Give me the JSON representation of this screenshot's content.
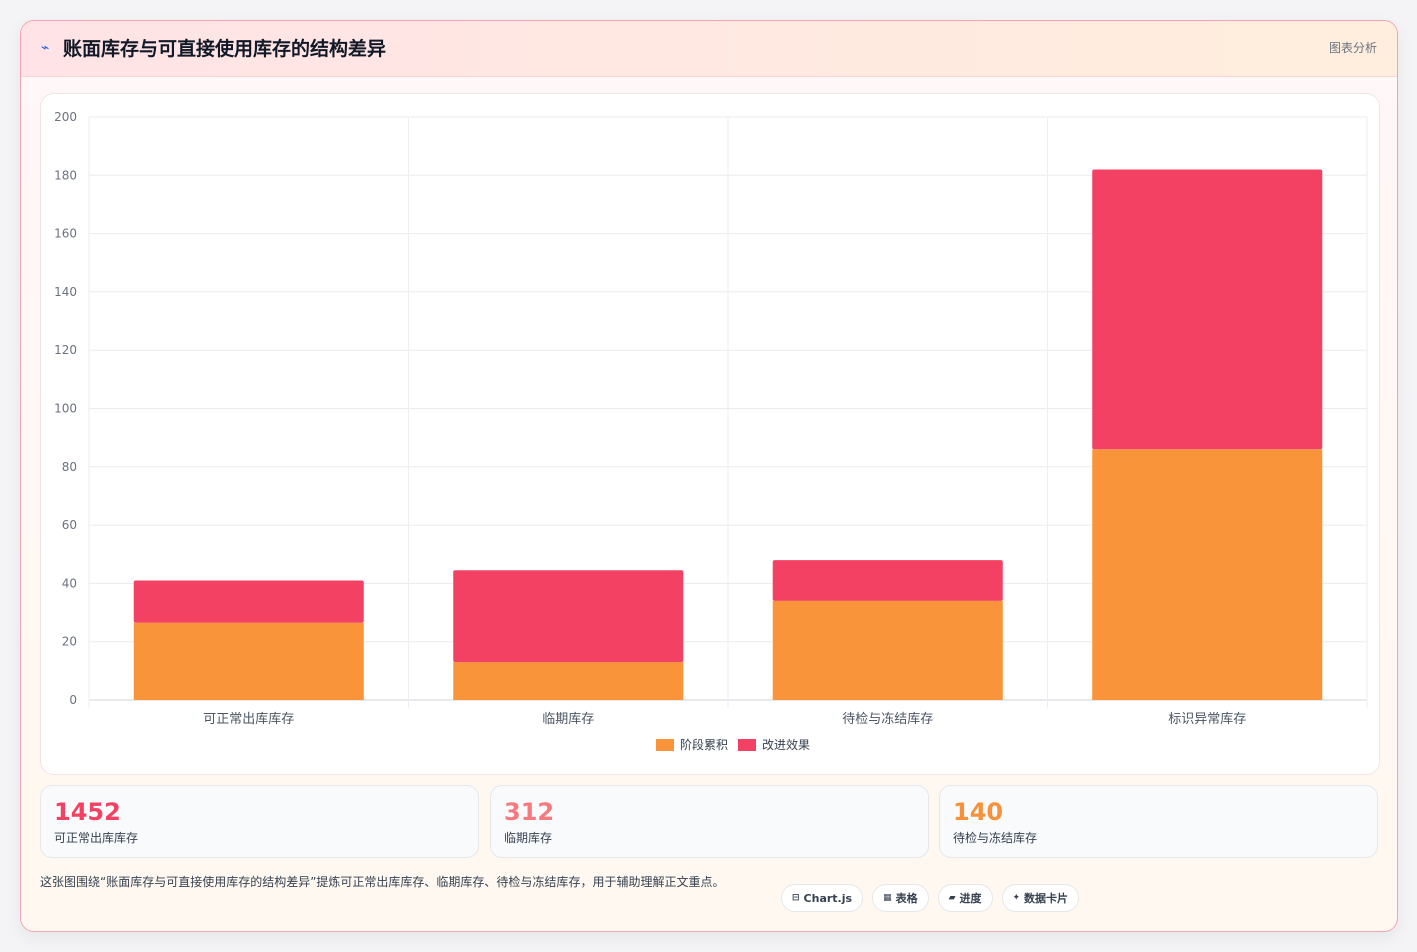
{
  "header": {
    "icon": "trend-icon",
    "title": "账面库存与可直接使用库存的结构差异",
    "right_label": "图表分析"
  },
  "colors": {
    "series_a": "#f9943b",
    "series_b": "#f24162",
    "kpi_1": "#f24162",
    "kpi_2": "#f47a7d",
    "kpi_3": "#f7913b"
  },
  "chart_data": {
    "type": "bar",
    "stacked": true,
    "categories": [
      "可正常出库库存",
      "临期库存",
      "待检与冻结库存",
      "标识异常库存"
    ],
    "series": [
      {
        "name": "阶段累积",
        "values": [
          26.5,
          13,
          34,
          86
        ]
      },
      {
        "name": "改进效果",
        "values": [
          14.5,
          31.5,
          14,
          96
        ]
      }
    ],
    "ylim": [
      0,
      200
    ],
    "yticks": [
      0,
      20,
      40,
      60,
      80,
      100,
      120,
      140,
      160,
      180,
      200
    ],
    "grid": true,
    "legend_position": "bottom"
  },
  "kpis": [
    {
      "value": "1452",
      "label": "可正常出库库存"
    },
    {
      "value": "312",
      "label": "临期库存"
    },
    {
      "value": "140",
      "label": "待检与冻结库存"
    }
  ],
  "footer": {
    "description": "这张图围绕“账面库存与可直接使用库存的结构差异”提炼可正常出库库存、临期库存、待检与冻结库存，用于辅助理解正文重点。",
    "tags": [
      {
        "icon": "⊟",
        "icon_name": "chart-icon",
        "label": "Chart.js"
      },
      {
        "icon": "▦",
        "icon_name": "table-icon",
        "label": "表格"
      },
      {
        "icon": "▰",
        "icon_name": "progress-icon",
        "label": "进度"
      },
      {
        "icon": "✦",
        "icon_name": "sparkle-icon",
        "label": "数据卡片"
      }
    ]
  }
}
